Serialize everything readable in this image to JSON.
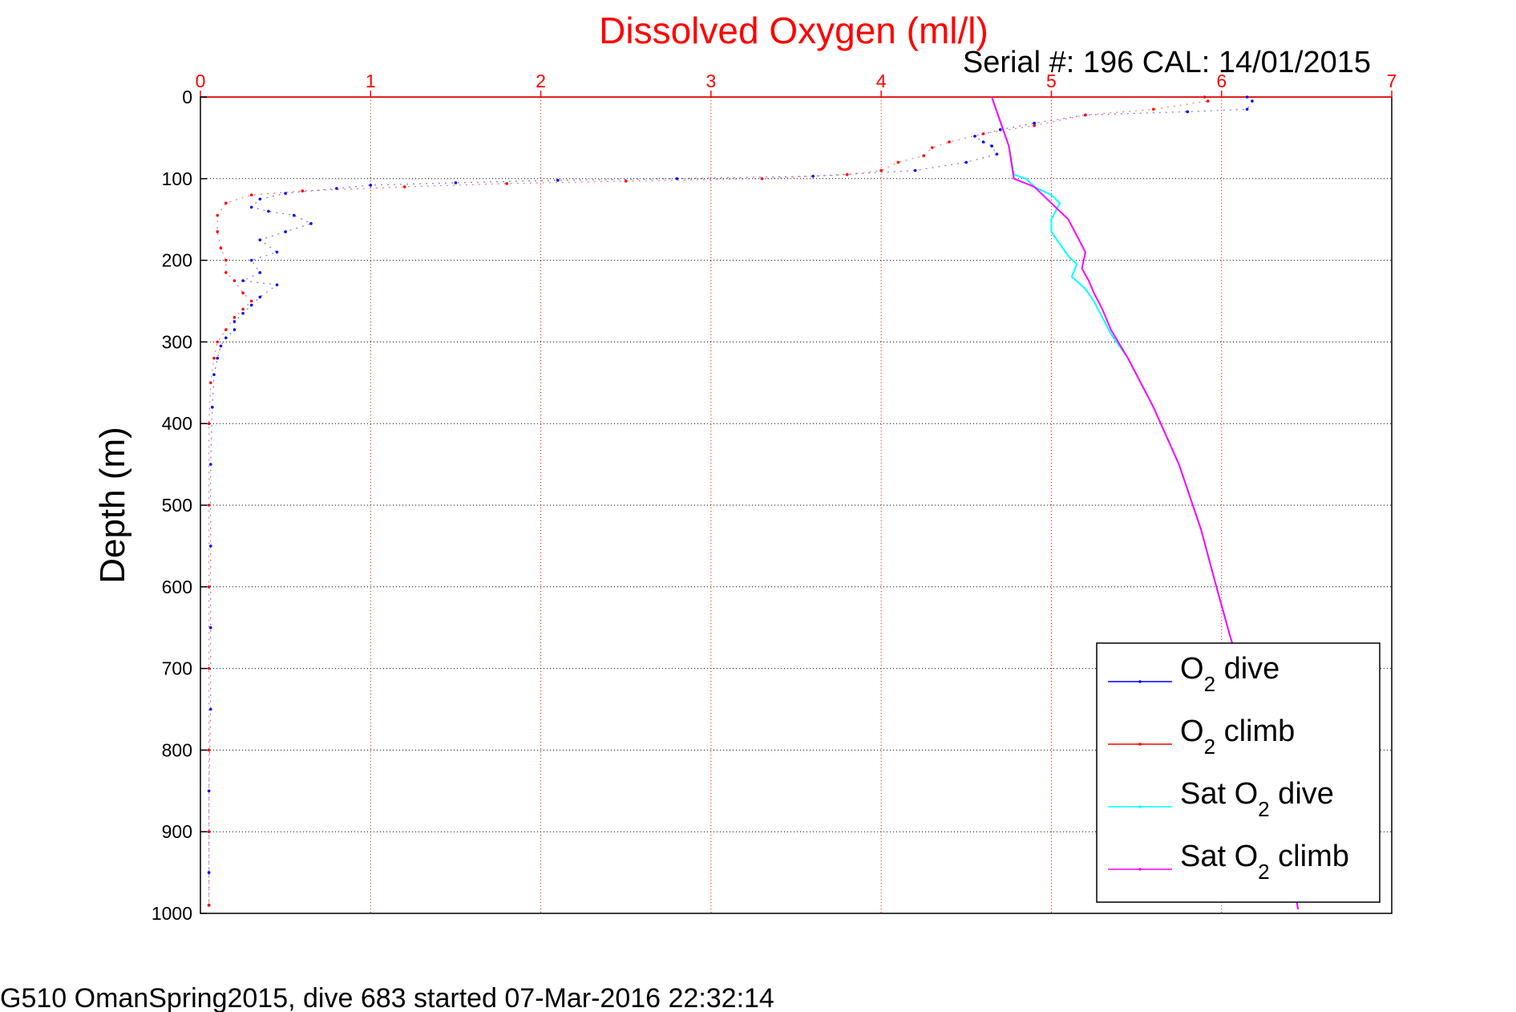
{
  "chart_data": {
    "type": "line",
    "title": "Dissolved Oxygen (ml/l)",
    "annotation": "Serial #: 196  CAL: 14/01/2015",
    "xlabel": "",
    "ylabel": "Depth (m)",
    "xlim": [
      0,
      7
    ],
    "ylim": [
      0,
      1000
    ],
    "y_reversed": true,
    "x_axis_position": "top",
    "x_ticks": [
      "0",
      "1",
      "2",
      "3",
      "4",
      "5",
      "6",
      "7"
    ],
    "y_ticks": [
      "0",
      "100",
      "200",
      "300",
      "400",
      "500",
      "600",
      "700",
      "800",
      "900",
      "1000"
    ],
    "grid": true,
    "legend_position": "bottom-right",
    "footer": "G510 OmanSpring2015, dive 683 started 07-Mar-2016 22:32:14",
    "series": [
      {
        "name": "O2 dive",
        "legend_main": "O",
        "legend_sub": "2",
        "legend_tail": " dive",
        "color": "#0000ff",
        "style": "dotted",
        "points": [
          [
            6.15,
            0
          ],
          [
            6.18,
            5
          ],
          [
            6.15,
            15
          ],
          [
            5.8,
            18
          ],
          [
            5.2,
            22
          ],
          [
            4.9,
            32
          ],
          [
            4.7,
            40
          ],
          [
            4.55,
            48
          ],
          [
            4.6,
            55
          ],
          [
            4.65,
            60
          ],
          [
            4.68,
            70
          ],
          [
            4.5,
            80
          ],
          [
            4.2,
            90
          ],
          [
            3.6,
            97
          ],
          [
            2.8,
            100
          ],
          [
            2.1,
            102
          ],
          [
            1.5,
            105
          ],
          [
            1.0,
            108
          ],
          [
            0.8,
            112
          ],
          [
            0.5,
            118
          ],
          [
            0.35,
            125
          ],
          [
            0.3,
            135
          ],
          [
            0.4,
            140
          ],
          [
            0.55,
            145
          ],
          [
            0.65,
            155
          ],
          [
            0.5,
            165
          ],
          [
            0.35,
            175
          ],
          [
            0.45,
            190
          ],
          [
            0.3,
            200
          ],
          [
            0.35,
            215
          ],
          [
            0.25,
            225
          ],
          [
            0.45,
            230
          ],
          [
            0.35,
            245
          ],
          [
            0.3,
            255
          ],
          [
            0.25,
            265
          ],
          [
            0.2,
            275
          ],
          [
            0.2,
            285
          ],
          [
            0.15,
            295
          ],
          [
            0.12,
            305
          ],
          [
            0.1,
            320
          ],
          [
            0.08,
            340
          ],
          [
            0.07,
            380
          ],
          [
            0.06,
            450
          ],
          [
            0.06,
            550
          ],
          [
            0.06,
            650
          ],
          [
            0.06,
            750
          ],
          [
            0.05,
            850
          ],
          [
            0.05,
            950
          ],
          [
            0.05,
            990
          ]
        ]
      },
      {
        "name": "O2 climb",
        "legend_main": "O",
        "legend_sub": "2",
        "legend_tail": " climb",
        "color": "#ff0000",
        "style": "dotted",
        "points": [
          [
            5.9,
            0
          ],
          [
            5.92,
            5
          ],
          [
            5.6,
            15
          ],
          [
            5.2,
            22
          ],
          [
            4.9,
            35
          ],
          [
            4.6,
            45
          ],
          [
            4.4,
            55
          ],
          [
            4.3,
            62
          ],
          [
            4.25,
            72
          ],
          [
            4.1,
            80
          ],
          [
            4.0,
            90
          ],
          [
            3.8,
            95
          ],
          [
            3.3,
            100
          ],
          [
            2.5,
            103
          ],
          [
            1.8,
            106
          ],
          [
            1.2,
            110
          ],
          [
            0.6,
            115
          ],
          [
            0.3,
            120
          ],
          [
            0.15,
            130
          ],
          [
            0.1,
            145
          ],
          [
            0.1,
            165
          ],
          [
            0.12,
            185
          ],
          [
            0.15,
            200
          ],
          [
            0.15,
            215
          ],
          [
            0.2,
            225
          ],
          [
            0.25,
            240
          ],
          [
            0.3,
            250
          ],
          [
            0.25,
            260
          ],
          [
            0.2,
            270
          ],
          [
            0.15,
            285
          ],
          [
            0.1,
            300
          ],
          [
            0.08,
            320
          ],
          [
            0.06,
            350
          ],
          [
            0.05,
            400
          ],
          [
            0.05,
            500
          ],
          [
            0.05,
            600
          ],
          [
            0.05,
            700
          ],
          [
            0.05,
            800
          ],
          [
            0.05,
            900
          ],
          [
            0.05,
            990
          ]
        ]
      },
      {
        "name": "Sat O2 dive",
        "legend_main": "Sat O",
        "legend_sub": "2",
        "legend_tail": " dive",
        "color": "#00ffff",
        "style": "solid",
        "points": [
          [
            4.65,
            0
          ],
          [
            4.7,
            30
          ],
          [
            4.75,
            60
          ],
          [
            4.78,
            95
          ],
          [
            4.85,
            100
          ],
          [
            4.9,
            110
          ],
          [
            5.0,
            120
          ],
          [
            5.05,
            130
          ],
          [
            5.0,
            150
          ],
          [
            5.0,
            165
          ],
          [
            5.05,
            180
          ],
          [
            5.1,
            195
          ],
          [
            5.15,
            205
          ],
          [
            5.12,
            220
          ],
          [
            5.2,
            235
          ],
          [
            5.25,
            250
          ],
          [
            5.3,
            270
          ],
          [
            5.35,
            290
          ],
          [
            5.45,
            320
          ],
          [
            5.6,
            380
          ],
          [
            5.75,
            450
          ],
          [
            5.88,
            530
          ],
          [
            5.97,
            600
          ],
          [
            6.05,
            660
          ],
          [
            6.15,
            730
          ],
          [
            6.25,
            800
          ],
          [
            6.32,
            870
          ],
          [
            6.4,
            940
          ],
          [
            6.45,
            995
          ]
        ]
      },
      {
        "name": "Sat O2 climb",
        "legend_main": "Sat O",
        "legend_sub": "2",
        "legend_tail": " climb",
        "color": "#ff00ff",
        "style": "solid",
        "points": [
          [
            4.65,
            0
          ],
          [
            4.7,
            30
          ],
          [
            4.75,
            60
          ],
          [
            4.78,
            100
          ],
          [
            4.9,
            110
          ],
          [
            5.0,
            130
          ],
          [
            5.1,
            150
          ],
          [
            5.15,
            170
          ],
          [
            5.2,
            190
          ],
          [
            5.18,
            210
          ],
          [
            5.22,
            225
          ],
          [
            5.25,
            240
          ],
          [
            5.3,
            260
          ],
          [
            5.35,
            285
          ],
          [
            5.45,
            320
          ],
          [
            5.6,
            380
          ],
          [
            5.75,
            450
          ],
          [
            5.88,
            530
          ],
          [
            5.97,
            600
          ],
          [
            6.05,
            660
          ],
          [
            6.15,
            730
          ],
          [
            6.25,
            800
          ],
          [
            6.32,
            870
          ],
          [
            6.4,
            940
          ],
          [
            6.45,
            995
          ]
        ]
      }
    ]
  }
}
